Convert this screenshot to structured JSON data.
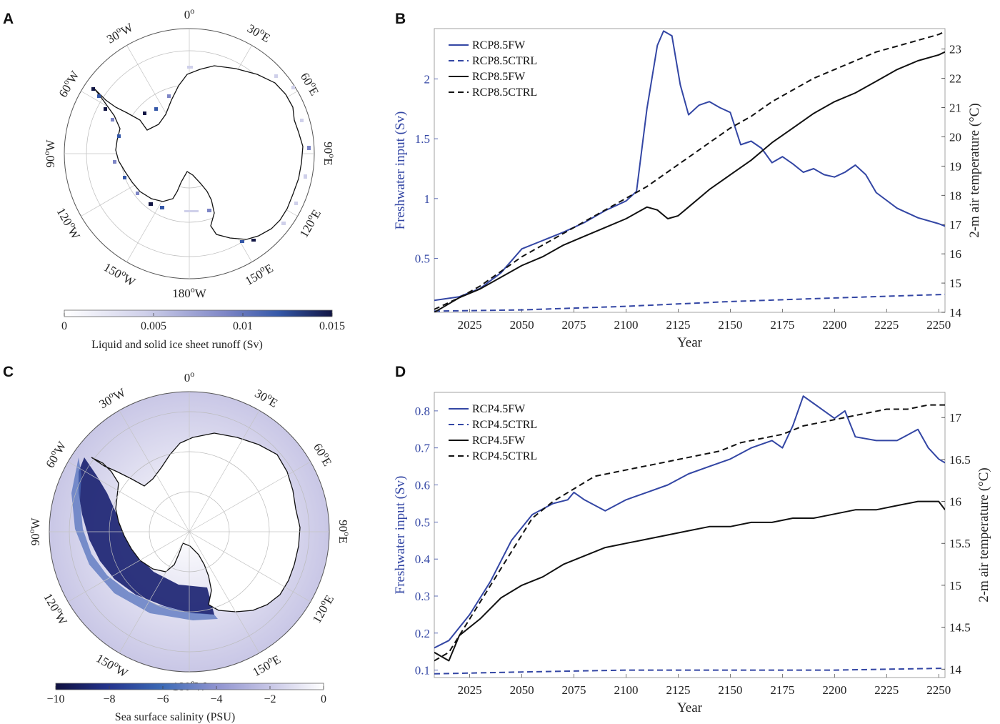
{
  "panels": {
    "a": {
      "letter": "A"
    },
    "b": {
      "letter": "B"
    },
    "c": {
      "letter": "C"
    },
    "d": {
      "letter": "D"
    }
  },
  "colors": {
    "blue": "#3346a4",
    "black": "#111111",
    "dark_navy": "#0f1040"
  },
  "maps": [
    {
      "id": "A",
      "longitude_labels": [
        "0",
        "30",
        "60",
        "90",
        "120",
        "150",
        "180",
        "150",
        "120",
        "90",
        "60",
        "30"
      ],
      "longitude_suffix": [
        "",
        "E",
        "E",
        "E",
        "E",
        "E",
        "W",
        "W",
        "W",
        "W",
        "W",
        "W"
      ],
      "degree_symbol": "o",
      "colorbar": {
        "label": "Liquid and solid ice sheet runoff (Sv)",
        "ticks": [
          "0",
          "0.005",
          "0.01",
          "0.015"
        ],
        "range": [
          0,
          0.015
        ]
      }
    },
    {
      "id": "C",
      "longitude_labels": [
        "0",
        "30",
        "60",
        "90",
        "120",
        "150",
        "180",
        "150",
        "120",
        "90",
        "60",
        "30"
      ],
      "longitude_suffix": [
        "",
        "E",
        "E",
        "E",
        "E",
        "E",
        "W",
        "W",
        "W",
        "W",
        "W",
        "W"
      ],
      "degree_symbol": "o",
      "colorbar": {
        "label": "Sea surface salinity (PSU)",
        "ticks": [
          "−10",
          "−8",
          "−6",
          "−4",
          "−2",
          "0"
        ],
        "range": [
          -10,
          0
        ]
      }
    }
  ],
  "chart_data": [
    {
      "id": "B",
      "type": "line",
      "xlabel": "Year",
      "ylabel_left": "Freshwater input (Sv)",
      "ylabel_right": "2-m air temperature (°C)",
      "xlim": [
        2008,
        2253
      ],
      "ylim_left": [
        0.05,
        2.42
      ],
      "ylim_right": [
        14,
        23.7
      ],
      "xticks": [
        2025,
        2050,
        2075,
        2100,
        2125,
        2150,
        2175,
        2200,
        2225,
        2250
      ],
      "yticks_left": [
        "0.5",
        "1",
        "1.5",
        "2"
      ],
      "yticks_right": [
        "14",
        "15",
        "16",
        "17",
        "18",
        "19",
        "20",
        "21",
        "22",
        "23"
      ],
      "legend_position": "top-left",
      "series": [
        {
          "name": "RCP8.5FW",
          "axis": "left",
          "style": "solid",
          "color": "#3346a4",
          "x": [
            2008,
            2020,
            2030,
            2040,
            2050,
            2060,
            2070,
            2080,
            2090,
            2100,
            2105,
            2110,
            2115,
            2118,
            2122,
            2126,
            2130,
            2135,
            2140,
            2145,
            2150,
            2155,
            2160,
            2165,
            2170,
            2175,
            2180,
            2185,
            2190,
            2195,
            2200,
            2205,
            2210,
            2215,
            2220,
            2230,
            2240,
            2250,
            2253
          ],
          "y": [
            0.15,
            0.18,
            0.25,
            0.38,
            0.58,
            0.65,
            0.72,
            0.8,
            0.9,
            0.98,
            1.06,
            1.75,
            2.28,
            2.4,
            2.36,
            1.95,
            1.7,
            1.78,
            1.81,
            1.76,
            1.72,
            1.45,
            1.48,
            1.42,
            1.3,
            1.35,
            1.29,
            1.22,
            1.25,
            1.2,
            1.18,
            1.22,
            1.28,
            1.2,
            1.05,
            0.92,
            0.84,
            0.79,
            0.77
          ]
        },
        {
          "name": "RCP8.5CTRL",
          "axis": "left",
          "style": "dashed",
          "color": "#3346a4",
          "x": [
            2008,
            2050,
            2100,
            2150,
            2200,
            2253
          ],
          "y": [
            0.06,
            0.07,
            0.1,
            0.14,
            0.17,
            0.2
          ]
        },
        {
          "name": "RCP8.5FW",
          "axis": "right",
          "style": "solid",
          "color": "#111111",
          "x": [
            2008,
            2020,
            2030,
            2040,
            2050,
            2060,
            2070,
            2080,
            2090,
            2100,
            2110,
            2115,
            2120,
            2125,
            2130,
            2140,
            2150,
            2160,
            2170,
            2180,
            2190,
            2200,
            2210,
            2220,
            2230,
            2240,
            2250,
            2253
          ],
          "y": [
            14.0,
            14.5,
            14.8,
            15.2,
            15.6,
            15.9,
            16.3,
            16.6,
            16.9,
            17.2,
            17.6,
            17.5,
            17.2,
            17.3,
            17.6,
            18.2,
            18.7,
            19.2,
            19.8,
            20.3,
            20.8,
            21.2,
            21.5,
            21.9,
            22.3,
            22.6,
            22.8,
            22.9
          ]
        },
        {
          "name": "RCP8.5CTRL",
          "axis": "right",
          "style": "dashed",
          "color": "#111111",
          "x": [
            2008,
            2020,
            2030,
            2040,
            2050,
            2060,
            2070,
            2080,
            2090,
            2100,
            2110,
            2120,
            2130,
            2140,
            2150,
            2160,
            2170,
            2180,
            2190,
            2200,
            2210,
            2220,
            2230,
            2240,
            2250,
            2253
          ],
          "y": [
            14.1,
            14.5,
            14.9,
            15.4,
            15.9,
            16.3,
            16.7,
            17.1,
            17.5,
            17.9,
            18.3,
            18.8,
            19.3,
            19.8,
            20.3,
            20.7,
            21.2,
            21.6,
            22.0,
            22.3,
            22.6,
            22.9,
            23.1,
            23.3,
            23.5,
            23.6
          ]
        }
      ]
    },
    {
      "id": "D",
      "type": "line",
      "xlabel": "Year",
      "ylabel_left": "Freshwater input (Sv)",
      "ylabel_right": "2-m air temperature (°C)",
      "xlim": [
        2008,
        2253
      ],
      "ylim_left": [
        0.08,
        0.85
      ],
      "ylim_right": [
        13.9,
        17.3
      ],
      "xticks": [
        2025,
        2050,
        2075,
        2100,
        2125,
        2150,
        2175,
        2200,
        2225,
        2250
      ],
      "yticks_left": [
        "0.1",
        "0.2",
        "0.3",
        "0.4",
        "0.5",
        "0.6",
        "0.7",
        "0.8"
      ],
      "yticks_right": [
        "14",
        "14.5",
        "15",
        "15.5",
        "16",
        "16.5",
        "17"
      ],
      "legend_position": "top-left",
      "series": [
        {
          "name": "RCP4.5FW",
          "axis": "left",
          "style": "solid",
          "color": "#3346a4",
          "x": [
            2008,
            2015,
            2025,
            2035,
            2045,
            2055,
            2065,
            2072,
            2075,
            2080,
            2090,
            2100,
            2110,
            2120,
            2130,
            2140,
            2150,
            2160,
            2170,
            2175,
            2180,
            2185,
            2190,
            2195,
            2200,
            2205,
            2210,
            2220,
            2230,
            2240,
            2245,
            2250,
            2253
          ],
          "y": [
            0.16,
            0.18,
            0.25,
            0.34,
            0.45,
            0.52,
            0.55,
            0.56,
            0.58,
            0.56,
            0.53,
            0.56,
            0.58,
            0.6,
            0.63,
            0.65,
            0.67,
            0.7,
            0.72,
            0.7,
            0.76,
            0.84,
            0.82,
            0.8,
            0.78,
            0.8,
            0.73,
            0.72,
            0.72,
            0.75,
            0.7,
            0.67,
            0.66
          ]
        },
        {
          "name": "RCP4.5CTRL",
          "axis": "left",
          "style": "dashed",
          "color": "#3346a4",
          "x": [
            2008,
            2050,
            2100,
            2150,
            2200,
            2253
          ],
          "y": [
            0.09,
            0.095,
            0.1,
            0.1,
            0.1,
            0.105
          ]
        },
        {
          "name": "RCP4.5FW",
          "axis": "right",
          "style": "solid",
          "color": "#111111",
          "x": [
            2008,
            2015,
            2020,
            2030,
            2040,
            2050,
            2060,
            2070,
            2080,
            2090,
            2100,
            2110,
            2120,
            2130,
            2140,
            2150,
            2160,
            2170,
            2180,
            2190,
            2200,
            2210,
            2220,
            2230,
            2240,
            2250,
            2253
          ],
          "y": [
            14.2,
            14.1,
            14.4,
            14.6,
            14.85,
            15.0,
            15.1,
            15.25,
            15.35,
            15.45,
            15.5,
            15.55,
            15.6,
            15.65,
            15.7,
            15.7,
            15.75,
            15.75,
            15.8,
            15.8,
            15.85,
            15.9,
            15.9,
            15.95,
            16.0,
            16.0,
            15.9
          ]
        },
        {
          "name": "RCP4.5CTRL",
          "axis": "right",
          "style": "dashed",
          "color": "#111111",
          "x": [
            2008,
            2015,
            2025,
            2035,
            2045,
            2055,
            2065,
            2075,
            2085,
            2095,
            2105,
            2115,
            2125,
            2135,
            2145,
            2155,
            2165,
            2175,
            2185,
            2195,
            2205,
            2215,
            2225,
            2235,
            2245,
            2253
          ],
          "y": [
            14.1,
            14.2,
            14.6,
            15.0,
            15.4,
            15.8,
            16.0,
            16.15,
            16.3,
            16.35,
            16.4,
            16.45,
            16.5,
            16.55,
            16.6,
            16.7,
            16.75,
            16.8,
            16.9,
            16.95,
            17.0,
            17.05,
            17.1,
            17.1,
            17.15,
            17.15
          ]
        }
      ]
    }
  ]
}
